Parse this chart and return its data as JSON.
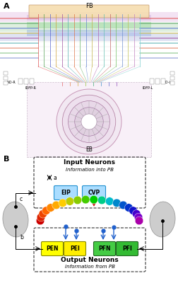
{
  "bg_color": "#ffffff",
  "panel_A": "A",
  "panel_B": "B",
  "FB": "FB",
  "EB": "EB",
  "NO_R": "NO-R",
  "NO_L": "NO-L",
  "IDFP_R": "IDFP-R",
  "IDFP_L": "IDFP-L",
  "input_title": "Input Neurons",
  "input_sub": "Information into PB",
  "output_title": "Output Neurons",
  "output_sub": "Information from PB",
  "EIP": "EIP",
  "CVP": "CVP",
  "PEN": "PEN",
  "PEI": "PEI",
  "PFN": "PFN",
  "PFI": "PFI",
  "a_label": "a",
  "b_label": "b",
  "c_label": "c",
  "rainbow": [
    "#cc0000",
    "#dd2200",
    "#ee4400",
    "#ff6600",
    "#ff8800",
    "#ffaa00",
    "#ffcc00",
    "#bbcc00",
    "#88cc00",
    "#44cc00",
    "#00cc00",
    "#00cc88",
    "#00bbcc",
    "#0088cc",
    "#0055cc",
    "#0033cc",
    "#1111cc",
    "#4400cc",
    "#7700cc",
    "#aa00aa"
  ],
  "eip_fill": "#aaddff",
  "cvp_fill": "#aaddff",
  "pen_fill": "#ffff00",
  "pei_fill": "#ffee00",
  "pfn_fill": "#44cc44",
  "pfi_fill": "#33bb33",
  "grid_cols": [
    "#e05050",
    "#50a050",
    "#5060cc",
    "#d0a030",
    "#a050a0",
    "#50b0b0",
    "#e07040",
    "#60b060",
    "#6080d0",
    "#c0b040",
    "#b060b0",
    "#60c0b0",
    "#c06060",
    "#70c060",
    "#7090d0",
    "#c0c050",
    "#c080c0",
    "#80d0d0"
  ],
  "long_band_cols": [
    "#e05050",
    "#50a060",
    "#5070d0",
    "#d0c040",
    "#a050a0",
    "#50b0b0",
    "#e08060",
    "#80c080",
    "#8090d0"
  ]
}
